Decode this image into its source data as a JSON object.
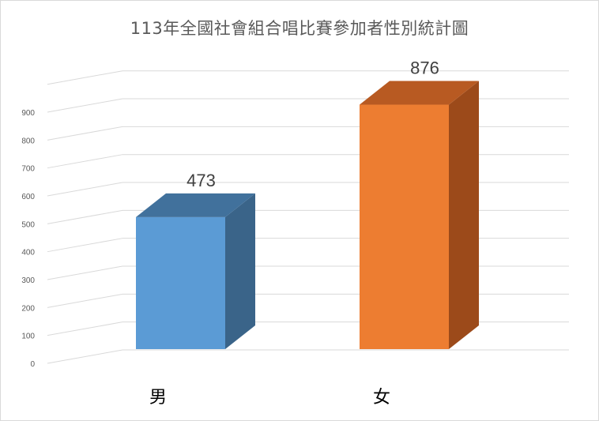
{
  "chart_data": {
    "type": "bar",
    "title": "113年全國社會組合唱比賽參加者性別統計圖",
    "categories": [
      "男",
      "女"
    ],
    "values": [
      473,
      876
    ],
    "ylim": [
      0,
      900
    ],
    "yticks": [
      0,
      100,
      200,
      300,
      400,
      500,
      600,
      700,
      800,
      900
    ],
    "data_labels": [
      "473",
      "876"
    ],
    "grid": true,
    "three_d": true,
    "colors": {
      "front": [
        "#5b9bd5",
        "#ed7d31"
      ],
      "top": [
        "#41719c",
        "#b85a22"
      ],
      "side": [
        "#3a6489",
        "#9c4a1a"
      ],
      "gridline": "#d9d9d9",
      "text": "#595959"
    }
  }
}
